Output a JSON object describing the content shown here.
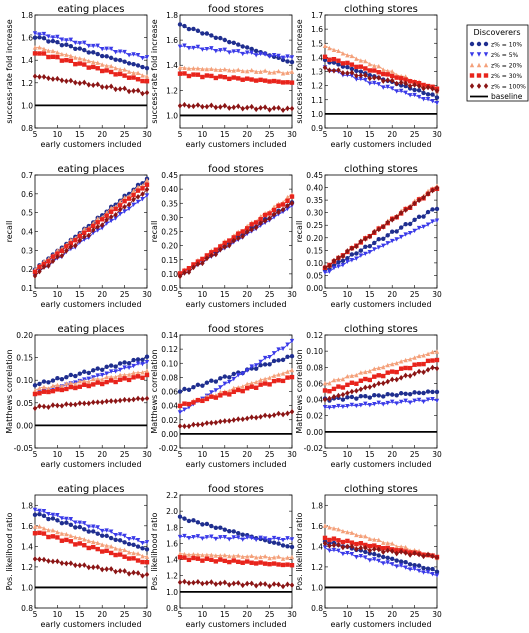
{
  "figure": {
    "xlabel": "early customers included",
    "legend": {
      "title": "Discoverers",
      "position": "right of top-right panel",
      "entries": [
        {
          "label": "z% = 10%",
          "color": "#1f2e8f",
          "marker": "circle"
        },
        {
          "label": "z% = 5%",
          "color": "#3a3ae8",
          "marker": "triangle-down"
        },
        {
          "label": "z% = 20%",
          "color": "#f4a07a",
          "marker": "triangle-up"
        },
        {
          "label": "z% = 30%",
          "color": "#e8241c",
          "marker": "square"
        },
        {
          "label": "z% = 100%",
          "color": "#8b1515",
          "marker": "diamond"
        },
        {
          "label": "baseline",
          "color": "#000000",
          "marker": "line"
        }
      ]
    }
  },
  "chart_data": [
    {
      "type": "line",
      "title": "eating places",
      "xlabel": "early customers included",
      "ylabel": "success-rate fold increase",
      "xlim": [
        5,
        30
      ],
      "ylim": [
        0.8,
        1.8
      ],
      "xticks": [
        "5",
        "10",
        "15",
        "20",
        "25",
        "30"
      ],
      "yticks": [
        "0.8",
        "1.0",
        "1.2",
        "1.4",
        "1.6",
        "1.8"
      ],
      "x": [
        5,
        30
      ],
      "series": [
        {
          "name": "z% = 10%",
          "values": [
            1.61,
            1.33
          ]
        },
        {
          "name": "z% = 5%",
          "values": [
            1.64,
            1.42
          ]
        },
        {
          "name": "z% = 20%",
          "values": [
            1.52,
            1.26
          ]
        },
        {
          "name": "z% = 30%",
          "values": [
            1.47,
            1.21
          ]
        },
        {
          "name": "z% = 100%",
          "values": [
            1.26,
            1.11
          ]
        },
        {
          "name": "baseline",
          "values": [
            1.0,
            1.0
          ]
        }
      ]
    },
    {
      "type": "line",
      "title": "food stores",
      "xlabel": "early customers included",
      "ylabel": "success-rate fold increase",
      "xlim": [
        5,
        30
      ],
      "ylim": [
        0.9,
        1.8
      ],
      "xticks": [
        "5",
        "10",
        "15",
        "20",
        "25",
        "30"
      ],
      "yticks": [
        "1.0",
        "1.2",
        "1.4",
        "1.6",
        "1.8"
      ],
      "x": [
        5,
        30
      ],
      "series": [
        {
          "name": "z% = 10%",
          "values": [
            1.72,
            1.42
          ]
        },
        {
          "name": "z% = 5%",
          "values": [
            1.55,
            1.46
          ]
        },
        {
          "name": "z% = 20%",
          "values": [
            1.38,
            1.34
          ]
        },
        {
          "name": "z% = 30%",
          "values": [
            1.33,
            1.26
          ]
        },
        {
          "name": "z% = 100%",
          "values": [
            1.08,
            1.05
          ]
        },
        {
          "name": "baseline",
          "values": [
            1.0,
            1.0
          ]
        }
      ]
    },
    {
      "type": "line",
      "title": "clothing stores",
      "xlabel": "early customers included",
      "ylabel": "success-rate fold increase",
      "xlim": [
        5,
        30
      ],
      "ylim": [
        0.9,
        1.7
      ],
      "xticks": [
        "5",
        "10",
        "15",
        "20",
        "25",
        "30"
      ],
      "yticks": [
        "0.9",
        "1.0",
        "1.1",
        "1.2",
        "1.3",
        "1.4",
        "1.5",
        "1.6",
        "1.7"
      ],
      "x": [
        5,
        30
      ],
      "series": [
        {
          "name": "z% = 10%",
          "values": [
            1.38,
            1.12
          ]
        },
        {
          "name": "z% = 5%",
          "values": [
            1.32,
            1.08
          ]
        },
        {
          "name": "z% = 20%",
          "values": [
            1.48,
            1.17
          ]
        },
        {
          "name": "z% = 30%",
          "values": [
            1.4,
            1.18
          ]
        },
        {
          "name": "z% = 100%",
          "values": [
            1.32,
            1.17
          ]
        },
        {
          "name": "baseline",
          "values": [
            1.0,
            1.0
          ]
        }
      ]
    },
    {
      "type": "line",
      "title": "eating places",
      "xlabel": "early customers included",
      "ylabel": "recall",
      "xlim": [
        5,
        30
      ],
      "ylim": [
        0.1,
        0.7
      ],
      "xticks": [
        "5",
        "10",
        "15",
        "20",
        "25",
        "30"
      ],
      "yticks": [
        "0.1",
        "0.2",
        "0.3",
        "0.4",
        "0.5",
        "0.6",
        "0.7"
      ],
      "x": [
        5,
        30
      ],
      "series": [
        {
          "name": "z% = 10%",
          "values": [
            0.2,
            0.68
          ]
        },
        {
          "name": "z% = 5%",
          "values": [
            0.17,
            0.59
          ]
        },
        {
          "name": "z% = 20%",
          "values": [
            0.2,
            0.67
          ]
        },
        {
          "name": "z% = 30%",
          "values": [
            0.19,
            0.65
          ]
        },
        {
          "name": "z% = 100%",
          "values": [
            0.17,
            0.62
          ]
        }
      ]
    },
    {
      "type": "line",
      "title": "food stores",
      "xlabel": "early customers included",
      "ylabel": "recall",
      "xlim": [
        5,
        30
      ],
      "ylim": [
        0.05,
        0.45
      ],
      "xticks": [
        "5",
        "10",
        "15",
        "20",
        "25",
        "30"
      ],
      "yticks": [
        "0.05",
        "0.10",
        "0.15",
        "0.20",
        "0.25",
        "0.30",
        "0.35",
        "0.40",
        "0.45"
      ],
      "x": [
        5,
        30
      ],
      "series": [
        {
          "name": "z% = 10%",
          "values": [
            0.1,
            0.35
          ]
        },
        {
          "name": "z% = 5%",
          "values": [
            0.09,
            0.34
          ]
        },
        {
          "name": "z% = 20%",
          "values": [
            0.1,
            0.38
          ]
        },
        {
          "name": "z% = 30%",
          "values": [
            0.1,
            0.37
          ]
        },
        {
          "name": "z% = 100%",
          "values": [
            0.09,
            0.35
          ]
        }
      ]
    },
    {
      "type": "line",
      "title": "clothing stores",
      "xlabel": "early customers included",
      "ylabel": "recall",
      "xlim": [
        5,
        30
      ],
      "ylim": [
        0.0,
        0.45
      ],
      "xticks": [
        "5",
        "10",
        "15",
        "20",
        "25",
        "30"
      ],
      "yticks": [
        "0.00",
        "0.05",
        "0.10",
        "0.15",
        "0.20",
        "0.25",
        "0.30",
        "0.35",
        "0.40",
        "0.45"
      ],
      "x": [
        5,
        30
      ],
      "series": [
        {
          "name": "z% = 10%",
          "values": [
            0.07,
            0.32
          ]
        },
        {
          "name": "z% = 5%",
          "values": [
            0.06,
            0.27
          ]
        },
        {
          "name": "z% = 20%",
          "values": [
            0.08,
            0.41
          ]
        },
        {
          "name": "z% = 30%",
          "values": [
            0.08,
            0.4
          ]
        },
        {
          "name": "z% = 100%",
          "values": [
            0.08,
            0.4
          ]
        }
      ]
    },
    {
      "type": "line",
      "title": "eating places",
      "xlabel": "early customers included",
      "ylabel": "Matthews correlation",
      "xlim": [
        5,
        30
      ],
      "ylim": [
        -0.05,
        0.2
      ],
      "xticks": [
        "5",
        "10",
        "15",
        "20",
        "25",
        "30"
      ],
      "yticks": [
        "-0.05",
        "0.00",
        "0.05",
        "0.10",
        "0.15",
        "0.20"
      ],
      "x": [
        5,
        30
      ],
      "series": [
        {
          "name": "z% = 10%",
          "values": [
            0.09,
            0.15
          ]
        },
        {
          "name": "z% = 5%",
          "values": [
            0.07,
            0.14
          ]
        },
        {
          "name": "z% = 20%",
          "values": [
            0.08,
            0.12
          ]
        },
        {
          "name": "z% = 30%",
          "values": [
            0.07,
            0.11
          ]
        },
        {
          "name": "z% = 100%",
          "values": [
            0.04,
            0.06
          ]
        },
        {
          "name": "baseline",
          "values": [
            0.0,
            0.0
          ]
        }
      ]
    },
    {
      "type": "line",
      "title": "food stores",
      "xlabel": "early customers included",
      "ylabel": "Matthews correlation",
      "xlim": [
        5,
        30
      ],
      "ylim": [
        -0.02,
        0.14
      ],
      "xticks": [
        "5",
        "10",
        "15",
        "20",
        "25",
        "30"
      ],
      "yticks": [
        "-0.02",
        "0.00",
        "0.02",
        "0.04",
        "0.06",
        "0.08",
        "0.10",
        "0.12",
        "0.14"
      ],
      "x": [
        5,
        30
      ],
      "series": [
        {
          "name": "z% = 10%",
          "values": [
            0.06,
            0.11
          ]
        },
        {
          "name": "z% = 5%",
          "values": [
            0.03,
            0.13
          ]
        },
        {
          "name": "z% = 20%",
          "values": [
            0.04,
            0.09
          ]
        },
        {
          "name": "z% = 30%",
          "values": [
            0.04,
            0.08
          ]
        },
        {
          "name": "z% = 100%",
          "values": [
            0.01,
            0.03
          ]
        },
        {
          "name": "baseline",
          "values": [
            0.0,
            0.0
          ]
        }
      ]
    },
    {
      "type": "line",
      "title": "clothing stores",
      "xlabel": "early customers included",
      "ylabel": "Matthews correlation",
      "xlim": [
        5,
        30
      ],
      "ylim": [
        -0.02,
        0.12
      ],
      "xticks": [
        "5",
        "10",
        "15",
        "20",
        "25",
        "30"
      ],
      "yticks": [
        "-0.02",
        "0.00",
        "0.02",
        "0.04",
        "0.06",
        "0.08",
        "0.10",
        "0.12"
      ],
      "x": [
        5,
        30
      ],
      "series": [
        {
          "name": "z% = 10%",
          "values": [
            0.04,
            0.05
          ]
        },
        {
          "name": "z% = 5%",
          "values": [
            0.03,
            0.04
          ]
        },
        {
          "name": "z% = 20%",
          "values": [
            0.06,
            0.1
          ]
        },
        {
          "name": "z% = 30%",
          "values": [
            0.05,
            0.09
          ]
        },
        {
          "name": "z% = 100%",
          "values": [
            0.04,
            0.08
          ]
        },
        {
          "name": "baseline",
          "values": [
            0.0,
            0.0
          ]
        }
      ]
    },
    {
      "type": "line",
      "title": "eating places",
      "xlabel": "early customers included",
      "ylabel": "Pos. likelihood ratio",
      "xlim": [
        5,
        30
      ],
      "ylim": [
        0.8,
        1.9
      ],
      "xticks": [
        "5",
        "10",
        "15",
        "20",
        "25",
        "30"
      ],
      "yticks": [
        "0.8",
        "1.0",
        "1.2",
        "1.4",
        "1.6",
        "1.8"
      ],
      "x": [
        5,
        30
      ],
      "series": [
        {
          "name": "z% = 10%",
          "values": [
            1.72,
            1.37
          ]
        },
        {
          "name": "z% = 5%",
          "values": [
            1.76,
            1.43
          ]
        },
        {
          "name": "z% = 20%",
          "values": [
            1.6,
            1.3
          ]
        },
        {
          "name": "z% = 30%",
          "values": [
            1.54,
            1.24
          ]
        },
        {
          "name": "z% = 100%",
          "values": [
            1.28,
            1.12
          ]
        },
        {
          "name": "baseline",
          "values": [
            1.0,
            1.0
          ]
        }
      ]
    },
    {
      "type": "line",
      "title": "food stores",
      "xlabel": "early customers included",
      "ylabel": "Pos. likelihood ratio",
      "xlim": [
        5,
        30
      ],
      "ylim": [
        0.8,
        2.2
      ],
      "xticks": [
        "5",
        "10",
        "15",
        "20",
        "25",
        "30"
      ],
      "yticks": [
        "0.8",
        "1.0",
        "1.2",
        "1.4",
        "1.6",
        "1.8",
        "2.0",
        "2.2"
      ],
      "x": [
        5,
        30
      ],
      "series": [
        {
          "name": "z% = 10%",
          "values": [
            1.92,
            1.55
          ]
        },
        {
          "name": "z% = 5%",
          "values": [
            1.68,
            1.65
          ]
        },
        {
          "name": "z% = 20%",
          "values": [
            1.47,
            1.42
          ]
        },
        {
          "name": "z% = 30%",
          "values": [
            1.42,
            1.33
          ]
        },
        {
          "name": "z% = 100%",
          "values": [
            1.12,
            1.08
          ]
        },
        {
          "name": "baseline",
          "values": [
            1.0,
            1.0
          ]
        }
      ]
    },
    {
      "type": "line",
      "title": "clothing stores",
      "xlabel": "early customers included",
      "ylabel": "Pos. likelihood ratio",
      "xlim": [
        5,
        30
      ],
      "ylim": [
        0.8,
        1.9
      ],
      "xticks": [
        "5",
        "10",
        "15",
        "20",
        "25",
        "30"
      ],
      "yticks": [
        "0.8",
        "1.0",
        "1.2",
        "1.4",
        "1.6",
        "1.8"
      ],
      "x": [
        5,
        30
      ],
      "series": [
        {
          "name": "z% = 10%",
          "values": [
            1.45,
            1.16
          ]
        },
        {
          "name": "z% = 5%",
          "values": [
            1.38,
            1.12
          ]
        },
        {
          "name": "z% = 20%",
          "values": [
            1.6,
            1.3
          ]
        },
        {
          "name": "z% = 30%",
          "values": [
            1.48,
            1.3
          ]
        },
        {
          "name": "z% = 100%",
          "values": [
            1.42,
            1.3
          ]
        },
        {
          "name": "baseline",
          "values": [
            1.0,
            1.0
          ]
        }
      ]
    }
  ]
}
